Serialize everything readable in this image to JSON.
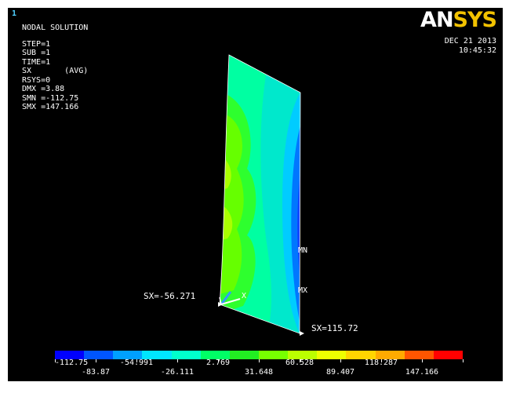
{
  "window": {
    "number": "1"
  },
  "info": {
    "title": "NODAL SOLUTION",
    "lines": [
      "STEP=1",
      "SUB =1",
      "TIME=1",
      "SX       (AVG)",
      "RSYS=0",
      "DMX =3.88",
      "SMN =-112.75",
      "SMX =147.166"
    ]
  },
  "logo": {
    "an": "AN",
    "sys": "SYS",
    "an_color": "#ffffff",
    "sys_color": "#f2c200"
  },
  "timestamp": {
    "date": "DEC 21 2013",
    "time": "10:45:32"
  },
  "model": {
    "min_marker": "MN",
    "max_marker": "MX",
    "axis_label": "X",
    "probe_left": "SX=-56.271",
    "probe_right": "SX=115.72"
  },
  "legend": {
    "colors": [
      "#0000ff",
      "#0055ff",
      "#00a0ff",
      "#00e6ff",
      "#00ffcc",
      "#00ff66",
      "#22ee22",
      "#77ff00",
      "#bbff00",
      "#eeff00",
      "#ffd500",
      "#ffaa00",
      "#ff5500",
      "#ff0000"
    ],
    "upper_labels": [
      "-112.75",
      "-54.991",
      "2.769",
      "60.528",
      "118.287"
    ],
    "lower_labels": [
      "-83.87",
      "-26.111",
      "31.648",
      "89.407",
      "147.166"
    ]
  }
}
